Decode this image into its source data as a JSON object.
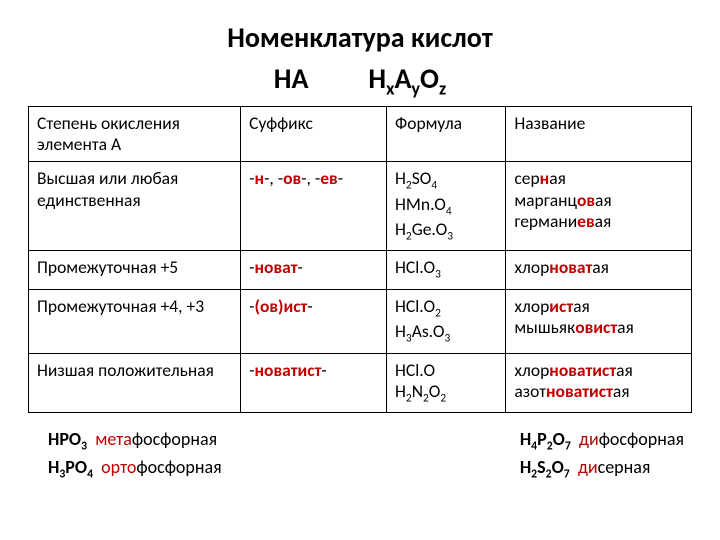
{
  "title": {
    "line1": "Номенклатура кислот",
    "left": "HA",
    "right_prefix": "H",
    "right_sub1": "x",
    "right_mid": "A",
    "right_sub2": "y",
    "right_mid2": "O",
    "right_sub3": "z"
  },
  "headers": {
    "c1": "Степень окисления элемента А",
    "c2": "Суффикс",
    "c3": "Формула",
    "c4": "Название"
  },
  "rows": [
    {
      "c1": "Высшая или любая единственная",
      "c2_parts": [
        "-",
        "н",
        "-, -",
        "ов",
        "-, -",
        "ев",
        "-"
      ],
      "c3": [
        "H<sub>2</sub>SO<sub>4</sub>",
        "HMn.O<sub>4</sub>",
        "H<sub>2</sub>Ge.O<sub>3</sub>"
      ],
      "c4": [
        {
          "pre": "сер",
          "suf": "н",
          "post": "ая"
        },
        {
          "pre": "марганц",
          "suf": "ов",
          "post": "ая"
        },
        {
          "pre": "германи",
          "suf": "ев",
          "post": "ая"
        }
      ]
    },
    {
      "c1": "Промежуточная +5",
      "c2_parts": [
        "-",
        "новат",
        "-"
      ],
      "c3": [
        "HCl.O<sub>3</sub>"
      ],
      "c4": [
        {
          "pre": "хлор",
          "suf": "новат",
          "post": "ая"
        }
      ]
    },
    {
      "c1": "Промежуточная +4, +3",
      "c2_parts": [
        "-",
        "(ов)ист",
        "-"
      ],
      "c3": [
        "HCl.O<sub>2</sub>",
        "H<sub>3</sub>As.O<sub>3</sub>"
      ],
      "c4": [
        {
          "pre": "хлор",
          "suf": "ист",
          "post": "ая"
        },
        {
          "pre": "мышьяк",
          "suf": "овист",
          "post": "ая"
        }
      ]
    },
    {
      "c1": "Низшая положительная",
      "c2_parts": [
        "-",
        "новатист",
        "-"
      ],
      "c3": [
        "HCl.O",
        "H<sub>2</sub>N<sub>2</sub>O<sub>2</sub>"
      ],
      "c4": [
        {
          "pre": "хлор",
          "suf": "новатист",
          "post": "ая"
        },
        {
          "pre": "азот",
          "suf": "новатист",
          "post": "ая"
        }
      ]
    }
  ],
  "footer": {
    "left": [
      {
        "formula": "HPO<sub>3</sub>",
        "pref": "мета",
        "rest": "фосфорная"
      },
      {
        "formula": "H<sub>3</sub>PO<sub>4</sub>",
        "pref": "орто",
        "rest": "фосфорная"
      }
    ],
    "right": [
      {
        "formula": "H<sub>4</sub>P<sub>2</sub>O<sub>7</sub>",
        "pref": "ди",
        "rest": "фосфорная"
      },
      {
        "formula": "H<sub>2</sub>S<sub>2</sub>O<sub>7</sub>",
        "pref": "ди",
        "rest": "серная"
      }
    ]
  },
  "colors": {
    "highlight": "#c00000",
    "text": "#000000",
    "bg": "#ffffff"
  }
}
